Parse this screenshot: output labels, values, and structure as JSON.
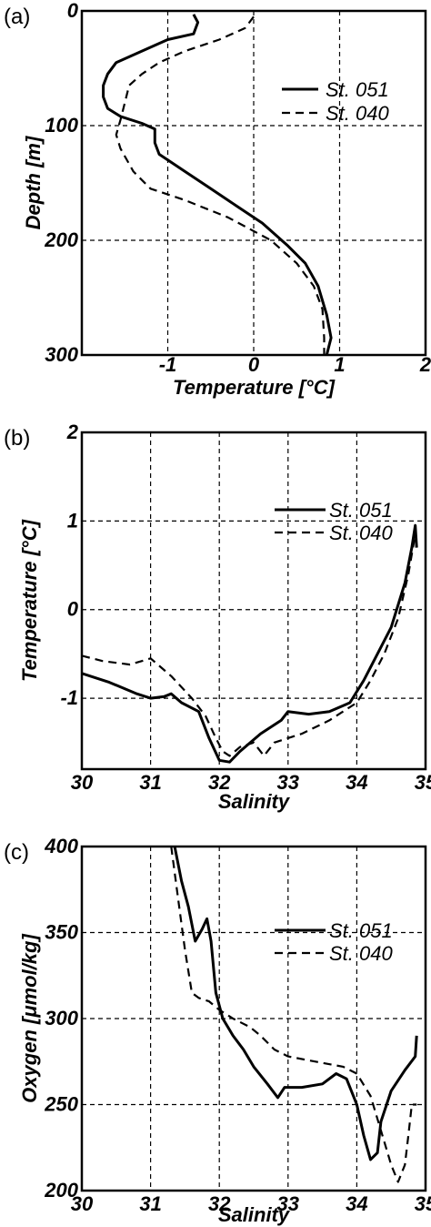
{
  "chart_data": [
    {
      "panel_label": "(a)",
      "type": "line",
      "xlabel": "Temperature [°C]",
      "ylabel": "Depth [m]",
      "xlim": [
        -2,
        2
      ],
      "ylim": [
        300,
        0
      ],
      "x_ticks": [
        "-1",
        "0",
        "1",
        "2"
      ],
      "y_ticks": [
        "0",
        "100",
        "200",
        "300"
      ],
      "grid": true,
      "legend_position": "right",
      "series": [
        {
          "name": "St. 051",
          "style": "solid",
          "points": [
            [
              -0.7,
              3
            ],
            [
              -0.65,
              10
            ],
            [
              -0.7,
              20
            ],
            [
              -1.0,
              25
            ],
            [
              -1.3,
              35
            ],
            [
              -1.6,
              45
            ],
            [
              -1.7,
              55
            ],
            [
              -1.75,
              65
            ],
            [
              -1.75,
              75
            ],
            [
              -1.7,
              85
            ],
            [
              -1.55,
              92
            ],
            [
              -1.3,
              98
            ],
            [
              -1.15,
              103
            ],
            [
              -1.15,
              115
            ],
            [
              -1.1,
              125
            ],
            [
              -1.0,
              130
            ],
            [
              -0.8,
              140
            ],
            [
              -0.5,
              155
            ],
            [
              -0.2,
              170
            ],
            [
              0.1,
              185
            ],
            [
              0.4,
              205
            ],
            [
              0.6,
              220
            ],
            [
              0.75,
              240
            ],
            [
              0.85,
              265
            ],
            [
              0.9,
              285
            ],
            [
              0.85,
              300
            ]
          ]
        },
        {
          "name": "St. 040",
          "style": "dashed",
          "points": [
            [
              0.0,
              5
            ],
            [
              -0.1,
              15
            ],
            [
              -0.4,
              25
            ],
            [
              -0.8,
              35
            ],
            [
              -1.1,
              45
            ],
            [
              -1.3,
              55
            ],
            [
              -1.45,
              65
            ],
            [
              -1.5,
              80
            ],
            [
              -1.55,
              95
            ],
            [
              -1.6,
              108
            ],
            [
              -1.55,
              120
            ],
            [
              -1.4,
              140
            ],
            [
              -1.2,
              155
            ],
            [
              -0.8,
              165
            ],
            [
              -0.3,
              180
            ],
            [
              0.2,
              200
            ],
            [
              0.5,
              220
            ],
            [
              0.7,
              240
            ],
            [
              0.8,
              260
            ],
            [
              0.82,
              285
            ],
            [
              0.82,
              300
            ]
          ]
        }
      ]
    },
    {
      "panel_label": "(b)",
      "type": "line",
      "xlabel": "Salinity",
      "ylabel": "Temperature [°C]",
      "xlim": [
        30,
        35
      ],
      "ylim": [
        -1.8,
        2
      ],
      "x_ticks": [
        "30",
        "31",
        "32",
        "33",
        "34",
        "35"
      ],
      "y_ticks": [
        "-1",
        "0",
        "1",
        "2"
      ],
      "grid": true,
      "legend_position": "right",
      "series": [
        {
          "name": "St. 051",
          "style": "solid",
          "points": [
            [
              30.0,
              -0.72
            ],
            [
              30.4,
              -0.82
            ],
            [
              30.8,
              -0.95
            ],
            [
              31.0,
              -1.0
            ],
            [
              31.2,
              -0.98
            ],
            [
              31.3,
              -0.95
            ],
            [
              31.45,
              -1.05
            ],
            [
              31.7,
              -1.15
            ],
            [
              31.85,
              -1.45
            ],
            [
              32.0,
              -1.7
            ],
            [
              32.15,
              -1.72
            ],
            [
              32.3,
              -1.6
            ],
            [
              32.6,
              -1.4
            ],
            [
              32.9,
              -1.25
            ],
            [
              33.0,
              -1.15
            ],
            [
              33.3,
              -1.18
            ],
            [
              33.6,
              -1.15
            ],
            [
              33.9,
              -1.05
            ],
            [
              34.1,
              -0.8
            ],
            [
              34.3,
              -0.5
            ],
            [
              34.5,
              -0.2
            ],
            [
              34.7,
              0.3
            ],
            [
              34.8,
              0.7
            ],
            [
              34.85,
              0.95
            ],
            [
              34.87,
              0.7
            ]
          ]
        },
        {
          "name": "St. 040",
          "style": "dashed",
          "points": [
            [
              30.0,
              -0.52
            ],
            [
              30.3,
              -0.58
            ],
            [
              30.7,
              -0.62
            ],
            [
              31.0,
              -0.55
            ],
            [
              31.3,
              -0.75
            ],
            [
              31.6,
              -1.0
            ],
            [
              31.8,
              -1.2
            ],
            [
              31.95,
              -1.45
            ],
            [
              32.05,
              -1.6
            ],
            [
              32.15,
              -1.65
            ],
            [
              32.3,
              -1.55
            ],
            [
              32.5,
              -1.5
            ],
            [
              32.65,
              -1.65
            ],
            [
              32.8,
              -1.5
            ],
            [
              33.2,
              -1.4
            ],
            [
              33.6,
              -1.25
            ],
            [
              34.0,
              -1.05
            ],
            [
              34.2,
              -0.8
            ],
            [
              34.4,
              -0.5
            ],
            [
              34.6,
              -0.1
            ],
            [
              34.75,
              0.4
            ],
            [
              34.85,
              0.85
            ]
          ]
        }
      ]
    },
    {
      "panel_label": "(c)",
      "type": "line",
      "xlabel": "Salinity",
      "ylabel": "Oxygen [μmol/kg]",
      "xlim": [
        30,
        35
      ],
      "ylim": [
        200,
        400
      ],
      "x_ticks": [
        "30",
        "31",
        "32",
        "33",
        "34",
        "35"
      ],
      "y_ticks": [
        "200",
        "250",
        "300",
        "350",
        "400"
      ],
      "grid": true,
      "legend_position": "right",
      "series": [
        {
          "name": "St. 051",
          "style": "solid",
          "points": [
            [
              31.35,
              400
            ],
            [
              31.45,
              380
            ],
            [
              31.55,
              365
            ],
            [
              31.65,
              345
            ],
            [
              31.75,
              352
            ],
            [
              31.82,
              358
            ],
            [
              31.88,
              345
            ],
            [
              31.95,
              315
            ],
            [
              32.05,
              300
            ],
            [
              32.2,
              290
            ],
            [
              32.35,
              282
            ],
            [
              32.5,
              272
            ],
            [
              32.7,
              262
            ],
            [
              32.85,
              254
            ],
            [
              32.95,
              260
            ],
            [
              33.2,
              260
            ],
            [
              33.5,
              262
            ],
            [
              33.7,
              268
            ],
            [
              33.85,
              265
            ],
            [
              34.0,
              250
            ],
            [
              34.1,
              232
            ],
            [
              34.2,
              218
            ],
            [
              34.3,
              222
            ],
            [
              34.35,
              240
            ],
            [
              34.5,
              258
            ],
            [
              34.7,
              270
            ],
            [
              34.85,
              278
            ],
            [
              34.87,
              290
            ]
          ]
        },
        {
          "name": "St. 040",
          "style": "dashed",
          "points": [
            [
              31.3,
              400
            ],
            [
              31.4,
              370
            ],
            [
              31.5,
              340
            ],
            [
              31.6,
              315
            ],
            [
              31.7,
              312
            ],
            [
              31.85,
              310
            ],
            [
              32.0,
              305
            ],
            [
              32.2,
              300
            ],
            [
              32.45,
              295
            ],
            [
              32.6,
              290
            ],
            [
              32.8,
              282
            ],
            [
              33.0,
              278
            ],
            [
              33.4,
              275
            ],
            [
              33.8,
              272
            ],
            [
              34.0,
              268
            ],
            [
              34.2,
              255
            ],
            [
              34.35,
              235
            ],
            [
              34.5,
              215
            ],
            [
              34.6,
              205
            ],
            [
              34.7,
              215
            ],
            [
              34.75,
              232
            ],
            [
              34.8,
              250
            ],
            [
              34.87,
              250
            ]
          ]
        }
      ]
    }
  ]
}
